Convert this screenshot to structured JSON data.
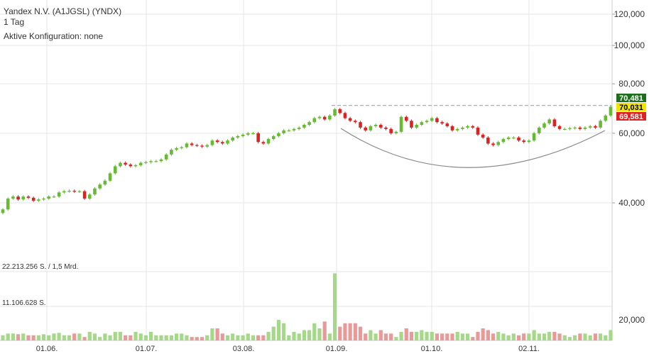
{
  "header": {
    "title": "Yandex N.V. (A1JGSL) (YNDX)",
    "period": "1 Tag",
    "config": "Aktive Konfiguration: none"
  },
  "colors": {
    "up": "#66bb33",
    "down": "#dd2222",
    "grid": "#e6e6e6",
    "resistance": "#999999",
    "pattern": "#888888",
    "label_high_bg": "#1f6e1f",
    "label_last_bg": "#f2e600",
    "label_low_bg": "#dd2222"
  },
  "chart_data": [
    {
      "type": "candlestick",
      "title": "Yandex N.V. (A1JGSL) (YNDX)",
      "scale": "log",
      "ylim": [
        28,
        130
      ],
      "y_ticks": [
        "120,000",
        "100,000",
        "80,000",
        "60,000",
        "40,000"
      ],
      "y_tick_values": [
        120,
        100,
        80,
        60,
        40
      ],
      "x_ticks": [
        "01.06.",
        "01.07.",
        "03.08.",
        "01.09.",
        "01.10.",
        "02.11."
      ],
      "grid": true,
      "price_labels": {
        "high": "70,481",
        "last": "70,031",
        "low": "69,581"
      },
      "resistance_level": 70.5,
      "closes": [
        38.5,
        41.0,
        41.5,
        40.8,
        41.5,
        41.2,
        40.5,
        40.8,
        41.0,
        41.5,
        41.5,
        42.5,
        42.8,
        42.9,
        42.7,
        42.8,
        41.0,
        42.0,
        43.5,
        44.5,
        45.5,
        47.5,
        49.5,
        50.5,
        50.0,
        49.5,
        49.8,
        50.5,
        50.7,
        51.0,
        51.0,
        51.5,
        53.0,
        54.5,
        55.0,
        55.3,
        56.5,
        56.0,
        55.8,
        55.5,
        56.0,
        57.5,
        57.0,
        56.5,
        57.5,
        58.5,
        59.0,
        59.5,
        60.0,
        60.0,
        57.0,
        56.5,
        58.0,
        59.0,
        60.0,
        61.0,
        61.0,
        61.5,
        62.0,
        63.0,
        64.0,
        65.5,
        66.0,
        65.0,
        66.5,
        69.0,
        67.5,
        65.5,
        64.5,
        64.0,
        62.0,
        61.0,
        62.5,
        63.0,
        62.0,
        61.5,
        60.0,
        60.5,
        66.0,
        64.5,
        62.0,
        63.0,
        64.0,
        64.5,
        65.5,
        64.0,
        63.5,
        62.5,
        61.0,
        61.5,
        62.0,
        62.5,
        62.0,
        59.5,
        58.5,
        56.5,
        56.0,
        57.0,
        58.0,
        58.5,
        58.5,
        57.5,
        57.0,
        57.5,
        60.0,
        62.0,
        63.5,
        65.0,
        62.5,
        61.5,
        61.5,
        61.8,
        62.0,
        61.5,
        62.0,
        62.5,
        62.0,
        64.5,
        66.5,
        70.0
      ],
      "volume_levels": [
        "22.213.256 S. / 1,5 Mrd.",
        "11.106.628 S."
      ],
      "volume_scale_label": "20,000",
      "volumes": [
        1.5,
        2.0,
        2.0,
        1.8,
        2.0,
        1.5,
        1.5,
        1.5,
        1.8,
        1.5,
        2.0,
        2.2,
        1.5,
        1.5,
        2.0,
        2.0,
        1.0,
        2.5,
        2.0,
        1.0,
        2.0,
        1.5,
        2.5,
        2.5,
        1.5,
        1.5,
        2.5,
        2.0,
        1.5,
        2.5,
        1.5,
        1.5,
        1.5,
        1.5,
        2.0,
        2.0,
        1.5,
        1.0,
        1.0,
        1.0,
        1.5,
        3.5,
        3.5,
        2.0,
        1.5,
        2.0,
        1.5,
        1.5,
        2.0,
        1.5,
        1.5,
        1.5,
        2.5,
        4.0,
        6.0,
        5.0,
        1.5,
        2.5,
        2.0,
        3.0,
        3.0,
        5.0,
        3.5,
        5.5,
        2.0,
        19.5,
        4.0,
        5.0,
        5.0,
        5.0,
        4.0,
        2.0,
        3.0,
        2.0,
        3.0,
        2.0,
        2.0,
        1.0,
        2.5,
        3.5,
        2.5,
        2.5,
        3.0,
        2.5,
        2.5,
        2.0,
        2.0,
        2.0,
        2.0,
        2.5,
        2.0,
        2.0,
        1.0,
        2.5,
        3.5,
        3.0,
        2.0,
        2.5,
        2.0,
        1.5,
        2.0,
        1.5,
        2.0,
        2.0,
        3.0,
        2.0,
        2.0,
        2.5,
        2.5,
        2.0,
        1.5,
        1.0,
        1.5,
        2.0,
        2.0,
        1.5,
        2.0,
        2.0,
        1.5,
        3.0
      ]
    }
  ]
}
